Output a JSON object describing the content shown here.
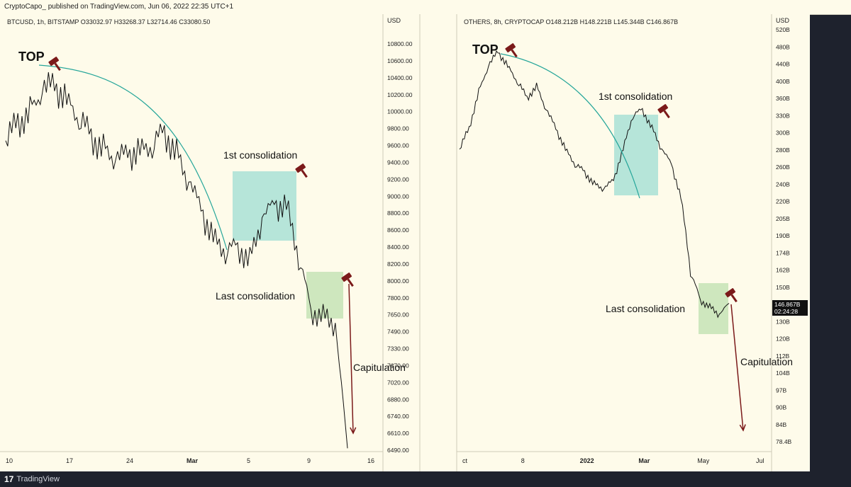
{
  "header": {
    "published": "CryptoCapo_ published on TradingView.com, Jun 06, 2022 22:35 UTC+1"
  },
  "footer": {
    "brand": "TradingView",
    "logo_icon": "tradingview-logo-icon"
  },
  "annotation_color": "#7b1a1a",
  "box_colors": {
    "first": "#a9e0d6",
    "last": "#c6e3b6"
  },
  "curve_color": "#26a69a",
  "chart_data": [
    {
      "type": "line",
      "symbol_line": "BTCUSD, 1h, BITSTAMP  O33032.97  H33268.37  L32714.46  C33080.50",
      "currency": "USD",
      "yaxis_ticks": [
        "10800.00",
        "10600.00",
        "10400.00",
        "10200.00",
        "10000.00",
        "9800.00",
        "9600.00",
        "9400.00",
        "9200.00",
        "9000.00",
        "8800.00",
        "8600.00",
        "8400.00",
        "8200.00",
        "8000.00",
        "7800.00",
        "7650.00",
        "7490.00",
        "7330.00",
        "7170.00",
        "7020.00",
        "6880.00",
        "6740.00",
        "6610.00",
        "6490.00"
      ],
      "xaxis_ticks": [
        "10",
        "17",
        "24",
        "Mar",
        "5",
        "9",
        "16"
      ],
      "annotations": {
        "top": "TOP",
        "first": "1st consolidation",
        "last": "Last consolidation",
        "capitulation": "Capitulation"
      },
      "series": [
        {
          "values": [
            9850,
            10050,
            10150,
            10400,
            10450,
            10300,
            10100,
            9900,
            9750,
            9650,
            9700,
            9750,
            9800,
            9950,
            9700,
            9400,
            9100,
            8800,
            8650,
            8700,
            8550,
            9000,
            9150,
            9150,
            8600,
            8000,
            7950,
            7850,
            6490
          ]
        }
      ]
    },
    {
      "type": "line",
      "symbol_line": "OTHERS, 8h, CRYPTOCAP  O148.212B  H148.221B  L145.344B  C146.867B",
      "currency": "USD",
      "yaxis_ticks": [
        "520B",
        "480B",
        "440B",
        "400B",
        "360B",
        "330B",
        "300B",
        "280B",
        "260B",
        "240B",
        "220B",
        "205B",
        "190B",
        "174B",
        "162B",
        "150B",
        "140B",
        "130B",
        "120B",
        "112B",
        "104B",
        "97B",
        "90B",
        "84B",
        "78.4B"
      ],
      "xaxis_ticks": [
        "ct",
        "8",
        "2022",
        "Mar",
        "May",
        "Jul"
      ],
      "last_price": "146.867B",
      "countdown": "02:24:28",
      "annotations": {
        "top": "TOP",
        "first": "1st consolidation",
        "last": "Last consolidation",
        "capitulation": "Capitulation"
      },
      "series": [
        {
          "values": [
            300,
            330,
            390,
            440,
            470,
            440,
            410,
            380,
            400,
            360,
            330,
            300,
            280,
            270,
            255,
            250,
            260,
            300,
            350,
            360,
            330,
            300,
            280,
            240,
            170,
            150,
            145,
            140,
            147
          ]
        }
      ]
    }
  ]
}
